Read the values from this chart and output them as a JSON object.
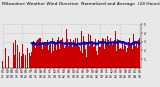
{
  "title": "Milwaukee Weather Wind Direction  Normalized and Average  (24 Hours) (Old)",
  "bg_color": "#e8e8e8",
  "plot_bg_color": "#e8e8e8",
  "grid_color": "#aaaaaa",
  "bar_color": "#cc0000",
  "avg_color": "#0000cc",
  "y_min": 0,
  "y_max": 5,
  "y_ticks": [
    1,
    2,
    3,
    4,
    5
  ],
  "n_points": 288,
  "spike_index": 100,
  "spike_value": 4.9,
  "base_mean": 2.8,
  "base_std": 0.7,
  "avg_mean": 2.9,
  "avg_std": 0.3,
  "title_fontsize": 3.2,
  "tick_fontsize": 2.2
}
